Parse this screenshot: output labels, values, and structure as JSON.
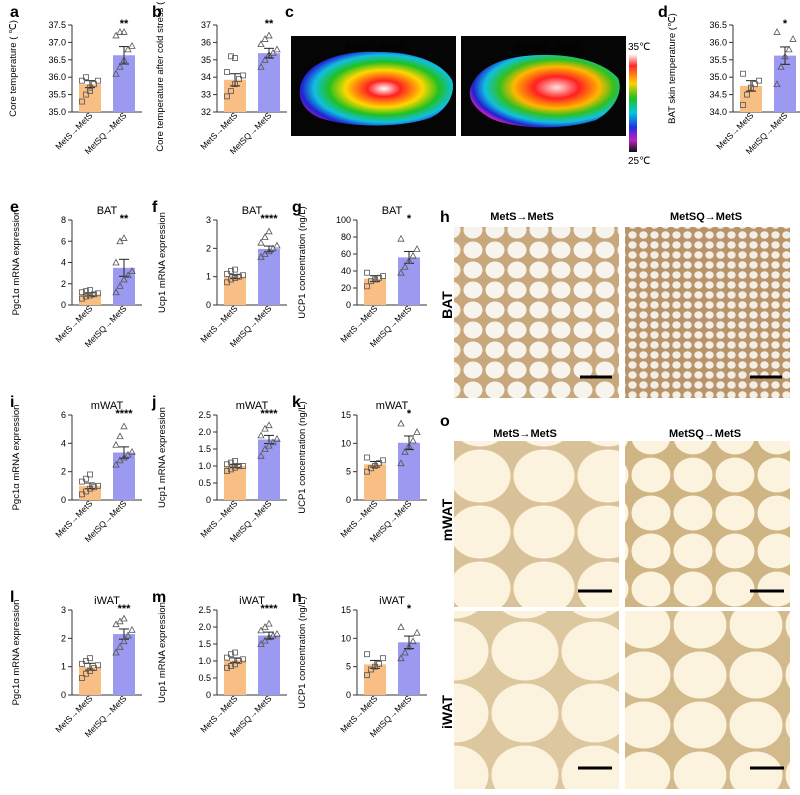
{
  "colors": {
    "metS": "#F9BE84",
    "metSQ": "#9B99F0",
    "axis": "#333333"
  },
  "group_labels": [
    "MetS→MetS",
    "MetSQ→MetS"
  ],
  "chart_data": [
    {
      "id": "a",
      "type": "bar",
      "title": "",
      "ylabel": "Core temperature ( ℃)",
      "categories": [
        "MetS→MetS",
        "MetSQ→MetS"
      ],
      "values": [
        35.8,
        36.63
      ],
      "errors": [
        0.1,
        0.25
      ],
      "ylim": [
        35.0,
        37.5
      ],
      "yticks": [
        "35.0",
        "35.5",
        "36.0",
        "36.5",
        "37.0",
        "37.5"
      ],
      "significance": "**",
      "points": [
        [
          35.3,
          35.5,
          35.7,
          35.8,
          35.9,
          35.9,
          36.0,
          35.6
        ],
        [
          36.1,
          36.3,
          36.5,
          36.8,
          36.9,
          37.2,
          37.3,
          37.3
        ]
      ]
    },
    {
      "id": "b",
      "type": "bar",
      "title": "",
      "ylabel": "Core temperature after cold stress ( ℃)",
      "categories": [
        "MetS→MetS",
        "MetSQ→MetS"
      ],
      "values": [
        33.85,
        35.38
      ],
      "errors": [
        0.35,
        0.28
      ],
      "ylim": [
        32,
        37
      ],
      "yticks": [
        "32",
        "33",
        "34",
        "35",
        "36",
        "37"
      ],
      "significance": "**",
      "points": [
        [
          32.9,
          33.2,
          33.6,
          33.9,
          34.1,
          34.3,
          35.2,
          35.1
        ],
        [
          34.6,
          35.0,
          35.3,
          35.4,
          35.6,
          35.9,
          36.2,
          36.4
        ]
      ]
    },
    {
      "id": "d",
      "type": "bar",
      "title": "",
      "ylabel": "BAT skin temperature (℃)",
      "categories": [
        "MetS→MetS",
        "MetSQ→MetS"
      ],
      "values": [
        34.75,
        35.62
      ],
      "errors": [
        0.15,
        0.25
      ],
      "ylim": [
        34.0,
        36.5
      ],
      "yticks": [
        "34.0",
        "34.5",
        "35.0",
        "35.5",
        "36.0",
        "36.5"
      ],
      "significance": "*",
      "points": [
        [
          34.2,
          34.5,
          34.7,
          34.8,
          34.9,
          35.1
        ],
        [
          34.8,
          35.3,
          35.6,
          35.8,
          36.1,
          36.3
        ]
      ]
    },
    {
      "id": "e",
      "type": "bar",
      "title": "BAT",
      "ylabel": "Pgc1α mRNA expression",
      "categories": [
        "MetS→MetS",
        "MetSQ→MetS"
      ],
      "values": [
        1.0,
        3.5
      ],
      "errors": [
        0.15,
        0.8
      ],
      "ylim": [
        0,
        8
      ],
      "yticks": [
        "0",
        "2",
        "4",
        "6",
        "8"
      ],
      "significance": "**",
      "points": [
        [
          0.6,
          0.8,
          0.9,
          1.0,
          1.1,
          1.2,
          1.3,
          1.4
        ],
        [
          1.2,
          1.8,
          2.4,
          2.8,
          3.2,
          4.0,
          6.0,
          6.3
        ]
      ]
    },
    {
      "id": "f",
      "type": "bar",
      "title": "BAT",
      "ylabel": "Ucp1 mRNA expression",
      "categories": [
        "MetS→MetS",
        "MetSQ→MetS"
      ],
      "values": [
        1.0,
        1.98
      ],
      "errors": [
        0.07,
        0.1
      ],
      "ylim": [
        0,
        3
      ],
      "yticks": [
        "0",
        "1",
        "2",
        "3"
      ],
      "significance": "****",
      "points": [
        [
          0.8,
          0.9,
          0.95,
          1.0,
          1.05,
          1.1,
          1.2,
          1.25
        ],
        [
          1.7,
          1.8,
          1.9,
          2.0,
          2.1,
          2.2,
          2.4,
          2.6
        ]
      ]
    },
    {
      "id": "g",
      "type": "bar",
      "title": "BAT",
      "ylabel": "UCP1 concentration (ng/L)",
      "categories": [
        "MetS→MetS",
        "MetSQ→MetS"
      ],
      "values": [
        31,
        56
      ],
      "errors": [
        3.5,
        7
      ],
      "ylim": [
        0,
        100
      ],
      "yticks": [
        "0",
        "20",
        "40",
        "60",
        "80",
        "100"
      ],
      "significance": "*",
      "points": [
        [
          22,
          28,
          30,
          32,
          34,
          38
        ],
        [
          38,
          45,
          52,
          58,
          66,
          78
        ]
      ]
    },
    {
      "id": "i",
      "type": "bar",
      "title": "mWAT",
      "ylabel": "Pgc1α mRNA expression",
      "categories": [
        "MetS→MetS",
        "MetSQ→MetS"
      ],
      "values": [
        1.0,
        3.35
      ],
      "errors": [
        0.2,
        0.4
      ],
      "ylim": [
        0,
        6
      ],
      "yticks": [
        "0",
        "2",
        "4",
        "6"
      ],
      "significance": "****",
      "points": [
        [
          0.4,
          0.6,
          0.8,
          0.9,
          1.0,
          1.3,
          1.5,
          1.8
        ],
        [
          2.5,
          2.8,
          3.0,
          3.2,
          3.4,
          3.9,
          4.5,
          5.2
        ]
      ]
    },
    {
      "id": "j",
      "type": "bar",
      "title": "mWAT",
      "ylabel": "Ucp1 mRNA expression",
      "categories": [
        "MetS→MetS",
        "MetSQ→MetS"
      ],
      "values": [
        1.0,
        1.78
      ],
      "errors": [
        0.05,
        0.12
      ],
      "ylim": [
        0,
        2.5
      ],
      "yticks": [
        "0",
        "0.5",
        "1.0",
        "1.5",
        "2.0",
        "2.5"
      ],
      "significance": "****",
      "points": [
        [
          0.85,
          0.9,
          0.95,
          1.0,
          1.0,
          1.05,
          1.1,
          1.15
        ],
        [
          1.3,
          1.5,
          1.6,
          1.7,
          1.8,
          1.9,
          2.1,
          2.2
        ]
      ]
    },
    {
      "id": "k",
      "type": "bar",
      "title": "mWAT",
      "ylabel": "UCP1 concentration (ng/L)",
      "categories": [
        "MetS→MetS",
        "MetSQ→MetS"
      ],
      "values": [
        6.3,
        10.1
      ],
      "errors": [
        0.5,
        1.2
      ],
      "ylim": [
        0,
        15
      ],
      "yticks": [
        "0",
        "5",
        "10",
        "15"
      ],
      "significance": "*",
      "points": [
        [
          5.0,
          5.6,
          6.0,
          6.5,
          7.0,
          7.5
        ],
        [
          6.5,
          8.5,
          9.5,
          10.5,
          12.0,
          13.5
        ]
      ]
    },
    {
      "id": "l",
      "type": "bar",
      "title": "iWAT",
      "ylabel": "Pgc1α mRNA expression",
      "categories": [
        "MetS→MetS",
        "MetSQ→MetS"
      ],
      "values": [
        1.0,
        2.15
      ],
      "errors": [
        0.12,
        0.18
      ],
      "ylim": [
        0,
        3
      ],
      "yticks": [
        "0",
        "1",
        "2",
        "3"
      ],
      "significance": "***",
      "points": [
        [
          0.6,
          0.75,
          0.85,
          0.95,
          1.05,
          1.1,
          1.2,
          1.3
        ],
        [
          1.5,
          1.7,
          1.9,
          2.1,
          2.3,
          2.5,
          2.6,
          2.7
        ]
      ]
    },
    {
      "id": "m",
      "type": "bar",
      "title": "iWAT",
      "ylabel": "Ucp1 mRNA expression",
      "categories": [
        "MetS→MetS",
        "MetSQ→MetS"
      ],
      "values": [
        1.02,
        1.75
      ],
      "errors": [
        0.07,
        0.1
      ],
      "ylim": [
        0,
        2.5
      ],
      "yticks": [
        "0",
        "0.5",
        "1.0",
        "1.5",
        "2.0",
        "2.5"
      ],
      "significance": "****",
      "points": [
        [
          0.8,
          0.85,
          0.9,
          1.0,
          1.05,
          1.1,
          1.2,
          1.25
        ],
        [
          1.5,
          1.6,
          1.7,
          1.75,
          1.8,
          1.9,
          2.0,
          2.1
        ]
      ]
    },
    {
      "id": "n",
      "type": "bar",
      "title": "iWAT",
      "ylabel": "UCP1 concentration (ng/L)",
      "categories": [
        "MetS→MetS",
        "MetSQ→MetS"
      ],
      "values": [
        5.4,
        9.3
      ],
      "errors": [
        0.7,
        1.1
      ],
      "ylim": [
        0,
        15
      ],
      "yticks": [
        "0",
        "5",
        "10",
        "15"
      ],
      "significance": "*",
      "points": [
        [
          3.5,
          4.5,
          5.0,
          5.5,
          6.5,
          7.2
        ],
        [
          6.5,
          7.5,
          8.5,
          9.5,
          11.0,
          12.0
        ]
      ]
    }
  ],
  "thermal": {
    "letter": "c",
    "left_title": "MetS→MetS",
    "right_title": "MetSQ→MetS",
    "scale_max": "35℃",
    "scale_min": "25℃"
  },
  "histology": {
    "h": {
      "letter": "h",
      "left_title": "MetS→MetS",
      "right_title": "MetSQ→MetS",
      "row_label": "BAT"
    },
    "o": {
      "letter": "o",
      "left_title": "MetS→MetS",
      "right_title": "MetSQ→MetS",
      "row_labels": [
        "mWAT",
        "iWAT"
      ]
    }
  }
}
